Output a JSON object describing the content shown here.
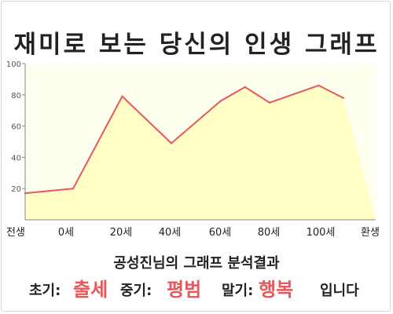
{
  "title": "재미로 보는 당신의 인생 그래프",
  "chart_data": {
    "type": "area",
    "title": "재미로 보는 당신의 인생 그래프",
    "xlabel": "",
    "ylabel": "",
    "x_tick_labels": [
      "전생",
      "0세",
      "20세",
      "40세",
      "60세",
      "80세",
      "100세",
      "환생"
    ],
    "y_ticks": [
      20,
      40,
      60,
      80,
      100
    ],
    "ylim": [
      0,
      100
    ],
    "x_ages": [
      "전생",
      0,
      20,
      40,
      60,
      70,
      80,
      100,
      110
    ],
    "values": [
      17,
      20,
      79,
      49,
      76,
      85,
      75,
      86,
      78
    ],
    "grid": false,
    "colors": {
      "line": "#e8575a",
      "fill": "#ffffc6",
      "plot_bg": "#fffff0",
      "axis": "#888888"
    }
  },
  "caption": "공성진님의 그래프 분석결과",
  "verdict": {
    "early_label": "초기:",
    "early_value": "출세",
    "middle_label": "중기:",
    "middle_value": "평범",
    "late_label": "말기:",
    "late_value": "행복",
    "suffix": "입니다"
  }
}
